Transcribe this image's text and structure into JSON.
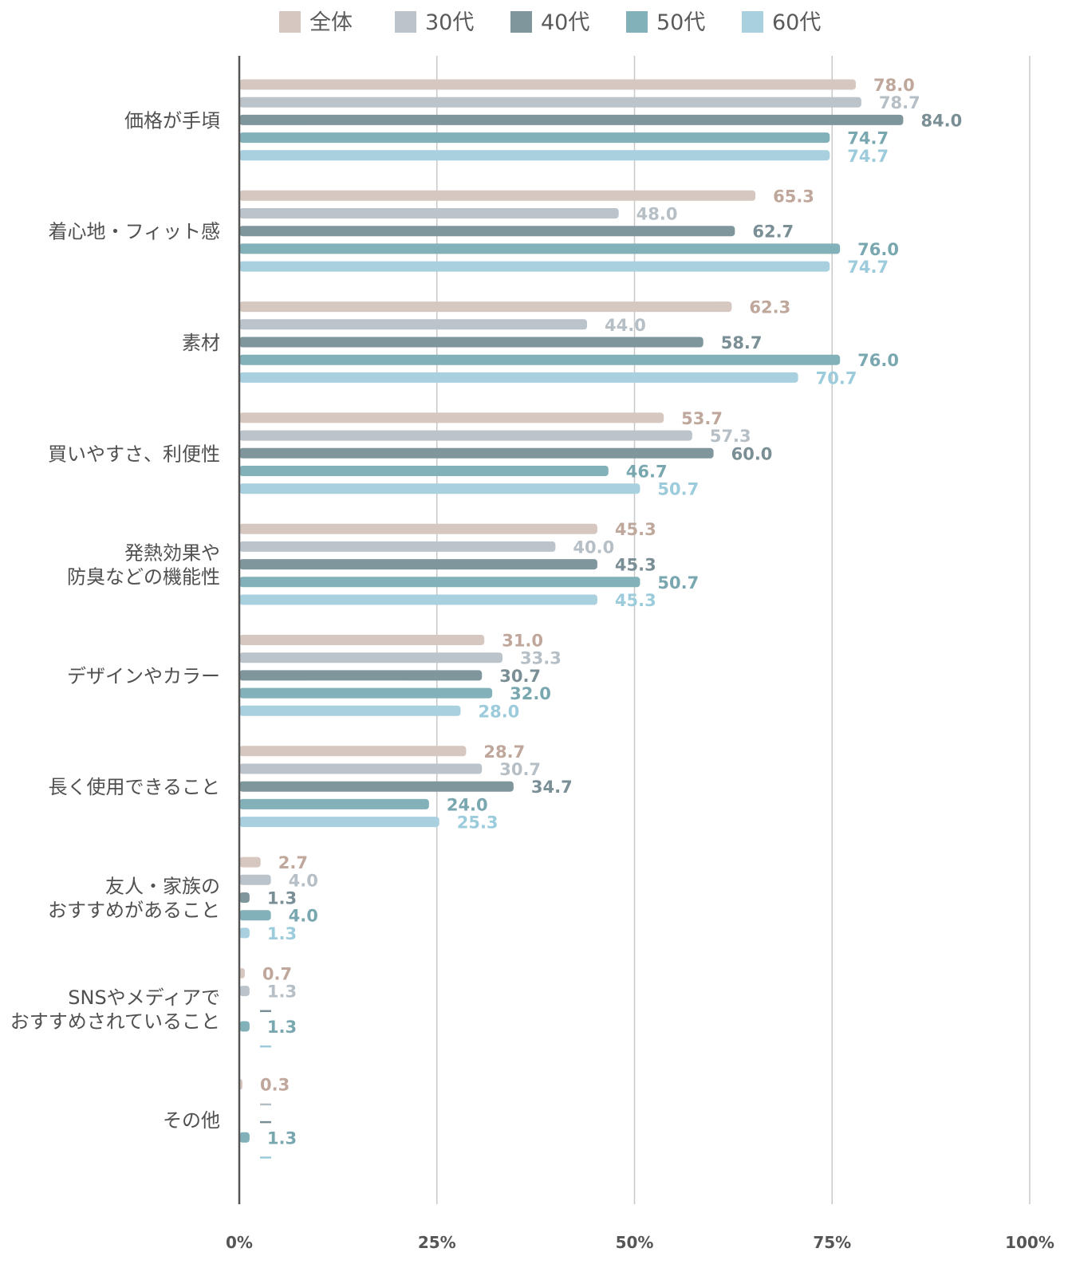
{
  "chart_data": {
    "type": "bar",
    "orientation": "horizontal",
    "xlim": [
      0,
      100
    ],
    "x_ticks": [
      "0%",
      "25%",
      "50%",
      "75%",
      "100%"
    ],
    "grid": true,
    "legend_position": "top",
    "categories": [
      [
        "価格が手頃"
      ],
      [
        "着心地・フィット感"
      ],
      [
        "素材"
      ],
      [
        "買いやすさ、利便性"
      ],
      [
        "発熱効果や",
        "防臭などの機能性"
      ],
      [
        "デザインやカラー"
      ],
      [
        "長く使用できること"
      ],
      [
        "友人・家族の",
        "おすすめがあること"
      ],
      [
        "SNSやメディアで",
        "おすすめされていること"
      ],
      [
        "その他"
      ]
    ],
    "series": [
      {
        "name": "全体",
        "color": "#d6c8c0",
        "label_color": "#bfa79b",
        "values": [
          78.0,
          65.3,
          62.3,
          53.7,
          45.3,
          31.0,
          28.7,
          2.7,
          0.7,
          0.3
        ],
        "labels": [
          "78.0",
          "65.3",
          "62.3",
          "53.7",
          "45.3",
          "31.0",
          "28.7",
          "2.7",
          "0.7",
          "0.3"
        ]
      },
      {
        "name": "30代",
        "color": "#bcc4cb",
        "label_color": "#b6bfc6",
        "values": [
          78.7,
          48.0,
          44.0,
          57.3,
          40.0,
          33.3,
          30.7,
          4.0,
          1.3,
          null
        ],
        "labels": [
          "78.7",
          "48.0",
          "44.0",
          "57.3",
          "40.0",
          "33.3",
          "30.7",
          "4.0",
          "1.3",
          "—"
        ]
      },
      {
        "name": "40代",
        "color": "#7f969d",
        "label_color": "#7a8e95",
        "values": [
          84.0,
          62.7,
          58.7,
          60.0,
          45.3,
          30.7,
          34.7,
          1.3,
          null,
          null
        ],
        "labels": [
          "84.0",
          "62.7",
          "58.7",
          "60.0",
          "45.3",
          "30.7",
          "34.7",
          "1.3",
          "—",
          "—"
        ]
      },
      {
        "name": "50代",
        "color": "#82b1b9",
        "label_color": "#79a7b0",
        "values": [
          74.7,
          76.0,
          76.0,
          46.7,
          50.7,
          32.0,
          24.0,
          4.0,
          1.3,
          1.3
        ],
        "labels": [
          "74.7",
          "76.0",
          "76.0",
          "46.7",
          "50.7",
          "32.0",
          "24.0",
          "4.0",
          "1.3",
          "1.3"
        ]
      },
      {
        "name": "60代",
        "color": "#a8d0de",
        "label_color": "#9ccbdc",
        "values": [
          74.7,
          74.7,
          70.7,
          50.7,
          45.3,
          28.0,
          25.3,
          1.3,
          null,
          null
        ],
        "labels": [
          "74.7",
          "74.7",
          "70.7",
          "50.7",
          "45.3",
          "28.0",
          "25.3",
          "1.3",
          "—",
          "—"
        ]
      }
    ]
  },
  "colors": {
    "axis": "#555555",
    "grid": "#c8c8c8",
    "label_text": "#505050"
  }
}
